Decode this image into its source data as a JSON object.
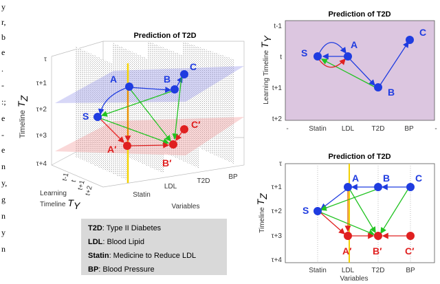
{
  "margin_fragments": [
    "y",
    "r,",
    "b",
    "e",
    ".",
    "-",
    ":;",
    "e",
    "-",
    "e",
    "n",
    "y,",
    "g",
    "n",
    "y",
    "n"
  ],
  "figure_3d": {
    "title": "Prediction of T2D",
    "z_ticks": [
      "τ",
      "τ+1",
      "τ+2",
      "τ+3",
      "τ+4"
    ],
    "z_label": "Timeline",
    "z_symbol": "T",
    "z_sub": "Z",
    "y_ticks": [
      "t-1",
      "t",
      "t+1",
      "t+2"
    ],
    "y_label_1": "Learning",
    "y_label_2": "Timeline",
    "y_symbol": "T",
    "y_sub": "Y",
    "x_ticks": [
      "Statin",
      "LDL",
      "T2D",
      "BP"
    ],
    "x_label": "Variables",
    "nodes": [
      "A",
      "B",
      "C",
      "S",
      "A′",
      "B′",
      "C′"
    ]
  },
  "legend": {
    "items": [
      {
        "term": "T2D",
        "desc": ": Type II Diabetes"
      },
      {
        "term": "LDL",
        "desc": ": Blood Lipid"
      },
      {
        "term": "Statin",
        "desc": ": Medicine to Reduce LDL"
      },
      {
        "term": "BP",
        "desc": ": Blood Pressure"
      }
    ]
  },
  "plot_top": {
    "title": "Prediction of T2D",
    "y_ticks": [
      "t-1",
      "t",
      "t+1",
      "t+2"
    ],
    "x_ticks": [
      "-",
      "Statin",
      "LDL",
      "T2D",
      "BP",
      "-"
    ],
    "y_label": "Learning Timeline",
    "y_symbol": "T",
    "y_sub": "Y",
    "nodes": [
      "S",
      "A",
      "B",
      "C"
    ]
  },
  "plot_bottom": {
    "title": "Prediction of T2D",
    "y_ticks": [
      "τ",
      "τ+1",
      "τ+2",
      "τ+3",
      "τ+4"
    ],
    "x_ticks": [
      "Statin",
      "LDL",
      "T2D",
      "BP"
    ],
    "x_label": "Variables",
    "y_label": "Timeline",
    "y_symbol": "T",
    "y_sub": "Z",
    "nodes": [
      "A",
      "B",
      "C",
      "S",
      "A′",
      "B′",
      "C′"
    ]
  }
}
